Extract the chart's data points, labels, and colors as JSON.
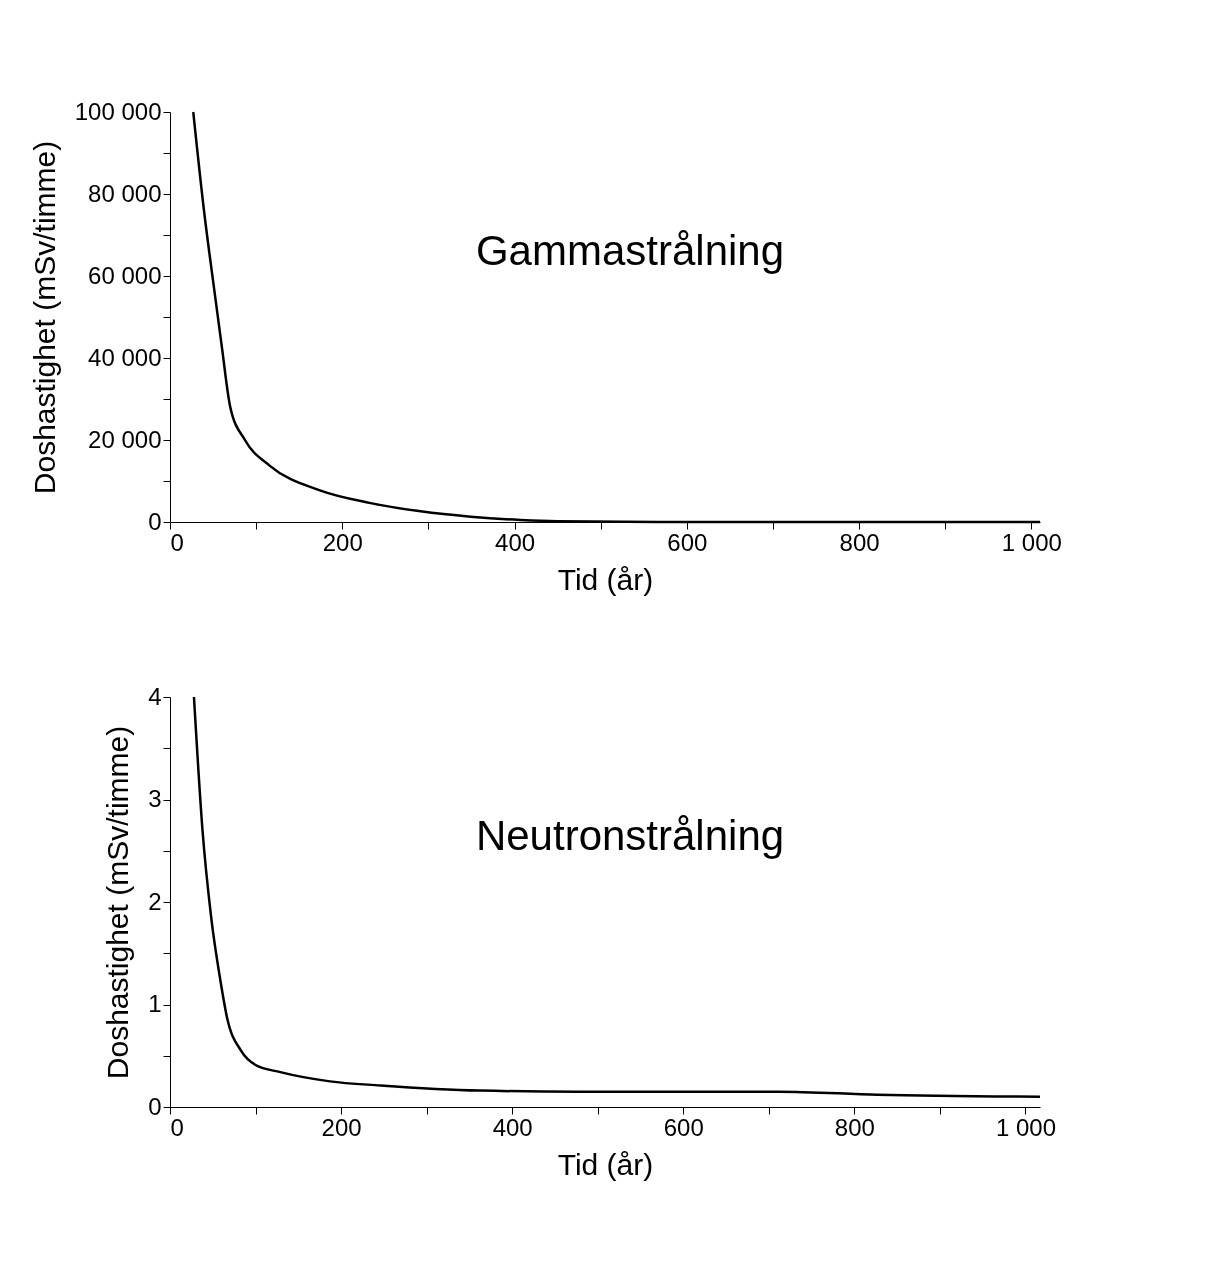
{
  "chart_data": [
    {
      "type": "line",
      "annotations": [
        "Gammastrålning"
      ],
      "xlabel": "Tid (år)",
      "ylabel": "Doshastighet (mSv/timme)",
      "grid": false,
      "marker": "none",
      "line_style": "solid",
      "x": [
        27,
        40,
        50,
        60,
        70,
        87,
        116,
        174,
        233,
        291,
        349,
        407,
        450,
        600,
        800,
        1010
      ],
      "series": [
        {
          "color": "#000000",
          "values": [
            100000,
            75000,
            58800,
            43000,
            28000,
            20000,
            13700,
            7700,
            4600,
            2600,
            1300,
            500,
            200,
            0,
            0,
            0
          ]
        }
      ],
      "xlim": [
        0,
        1010
      ],
      "ylim": [
        0,
        100000
      ],
      "xticks": [
        0,
        {
          "value": 100,
          "label": null
        },
        200,
        {
          "value": 300,
          "label": null
        },
        400,
        {
          "value": 500,
          "label": null
        },
        600,
        {
          "value": 700,
          "label": null
        },
        800,
        {
          "value": 900,
          "label": null
        },
        {
          "value": 1000,
          "label": "1 000"
        }
      ],
      "yticks": [
        0,
        {
          "value": 10000,
          "label": null
        },
        {
          "value": 20000,
          "label": "20 000"
        },
        {
          "value": 30000,
          "label": null
        },
        {
          "value": 40000,
          "label": "40 000"
        },
        {
          "value": 50000,
          "label": null
        },
        {
          "value": 60000,
          "label": "60 000"
        },
        {
          "value": 70000,
          "label": null
        },
        {
          "value": 80000,
          "label": "80 000"
        },
        {
          "value": 90000,
          "label": null
        },
        {
          "value": 100000,
          "label": "100 000"
        }
      ]
    },
    {
      "type": "line",
      "annotations": [
        "Neutronstrålning"
      ],
      "xlabel": "Tid (år)",
      "ylabel": "Doshastighet (mSv/timme)",
      "grid": false,
      "marker": "none",
      "line_style": "solid",
      "x": [
        28,
        38,
        48,
        59,
        67,
        83,
        100,
        129,
        187,
        246,
        362,
        478,
        711,
        827,
        1017
      ],
      "series": [
        {
          "color": "#000000",
          "values": [
            4.0,
            2.7,
            1.86,
            1.23,
            0.86,
            0.55,
            0.41,
            0.34,
            0.25,
            0.21,
            0.16,
            0.15,
            0.15,
            0.12,
            0.1
          ]
        }
      ],
      "xlim": [
        0,
        1017
      ],
      "ylim": [
        0,
        4
      ],
      "xticks": [
        0,
        {
          "value": 100,
          "label": null
        },
        200,
        {
          "value": 300,
          "label": null
        },
        400,
        {
          "value": 500,
          "label": null
        },
        600,
        {
          "value": 700,
          "label": null
        },
        800,
        {
          "value": 900,
          "label": null
        },
        {
          "value": 1000,
          "label": "1 000"
        }
      ],
      "yticks": [
        0,
        {
          "value": 0.5,
          "label": null
        },
        1,
        {
          "value": 1.5,
          "label": null
        },
        2,
        {
          "value": 2.5,
          "label": null
        },
        3,
        {
          "value": 3.5,
          "label": null
        },
        4
      ]
    }
  ]
}
